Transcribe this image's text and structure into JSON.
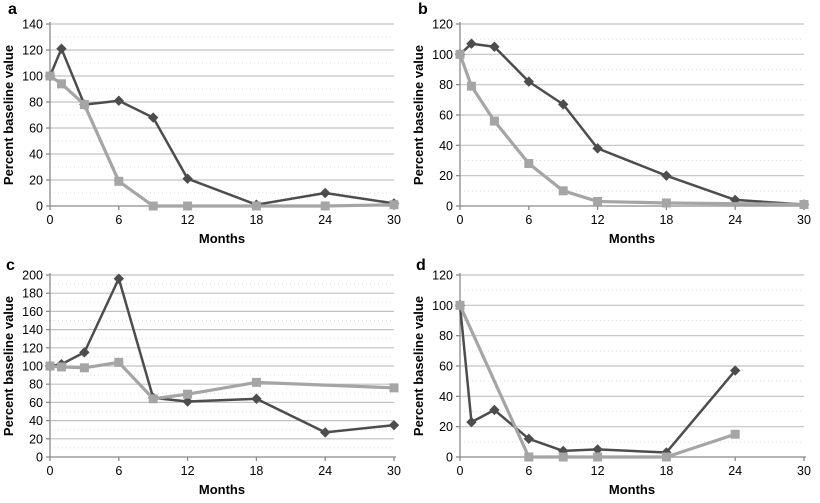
{
  "figure": {
    "background": "#ffffff",
    "series_colors": {
      "dark": "#4d4d4d",
      "light": "#a5a5a5"
    },
    "grid_major_color": "#c2c2c2",
    "grid_minor_color": "#d9d9d9",
    "axis_color": "#8a8a8a",
    "text_color": "#000000"
  },
  "chart_data": [
    {
      "panel": "a",
      "type": "line",
      "title": "",
      "xlabel": "Months",
      "ylabel": "Percent baseline value",
      "xlim": [
        0,
        30
      ],
      "ylim": [
        0,
        140
      ],
      "ytick_step": 20,
      "xticks": [
        0,
        6,
        12,
        18,
        24,
        30
      ],
      "grid": true,
      "legend": "none",
      "series": [
        {
          "name": "diamond-series",
          "marker": "diamond",
          "color_key": "dark",
          "points": [
            [
              0,
              100
            ],
            [
              1,
              121
            ],
            [
              3,
              78
            ],
            [
              6,
              81
            ],
            [
              9,
              68
            ],
            [
              12,
              21
            ],
            [
              18,
              1
            ],
            [
              24,
              10
            ],
            [
              30,
              2
            ]
          ]
        },
        {
          "name": "square-series",
          "marker": "square",
          "color_key": "light",
          "points": [
            [
              0,
              100
            ],
            [
              1,
              94
            ],
            [
              3,
              78
            ],
            [
              6,
              19
            ],
            [
              9,
              0
            ],
            [
              12,
              0
            ],
            [
              18,
              0
            ],
            [
              24,
              0
            ],
            [
              30,
              1
            ]
          ]
        }
      ]
    },
    {
      "panel": "b",
      "type": "line",
      "title": "",
      "xlabel": "Months",
      "ylabel": "Percent baseline value",
      "xlim": [
        0,
        30
      ],
      "ylim": [
        0,
        120
      ],
      "ytick_step": 20,
      "xticks": [
        0,
        6,
        12,
        18,
        24,
        30
      ],
      "grid": true,
      "legend": "none",
      "series": [
        {
          "name": "diamond-series",
          "marker": "diamond",
          "color_key": "dark",
          "points": [
            [
              0,
              100
            ],
            [
              1,
              107
            ],
            [
              3,
              105
            ],
            [
              6,
              82
            ],
            [
              9,
              67
            ],
            [
              12,
              38
            ],
            [
              18,
              20
            ],
            [
              24,
              4
            ],
            [
              30,
              1
            ]
          ]
        },
        {
          "name": "square-series",
          "marker": "square",
          "color_key": "light",
          "points": [
            [
              0,
              100
            ],
            [
              1,
              79
            ],
            [
              3,
              56
            ],
            [
              6,
              28
            ],
            [
              9,
              10
            ],
            [
              12,
              3
            ],
            [
              18,
              2
            ],
            [
              30,
              1
            ]
          ]
        }
      ]
    },
    {
      "panel": "c",
      "type": "line",
      "title": "",
      "xlabel": "Months",
      "ylabel": "Percent baseline value",
      "xlim": [
        0,
        30
      ],
      "ylim": [
        0,
        200
      ],
      "ytick_step": 20,
      "xticks": [
        0,
        6,
        12,
        18,
        24,
        30
      ],
      "grid": true,
      "legend": "none",
      "series": [
        {
          "name": "diamond-series",
          "marker": "diamond",
          "color_key": "dark",
          "points": [
            [
              0,
              100
            ],
            [
              1,
              102
            ],
            [
              3,
              115
            ],
            [
              6,
              196
            ],
            [
              9,
              65
            ],
            [
              12,
              61
            ],
            [
              18,
              64
            ],
            [
              24,
              27
            ],
            [
              30,
              35
            ]
          ]
        },
        {
          "name": "square-series",
          "marker": "square",
          "color_key": "light",
          "points": [
            [
              0,
              100
            ],
            [
              1,
              99
            ],
            [
              3,
              98
            ],
            [
              6,
              104
            ],
            [
              9,
              64
            ],
            [
              12,
              69
            ],
            [
              18,
              82
            ],
            [
              30,
              76
            ]
          ]
        }
      ]
    },
    {
      "panel": "d",
      "type": "line",
      "title": "",
      "xlabel": "Months",
      "ylabel": "Percent baseline value",
      "xlim": [
        0,
        30
      ],
      "ylim": [
        0,
        120
      ],
      "ytick_step": 20,
      "xticks": [
        0,
        6,
        12,
        18,
        24,
        30
      ],
      "grid": true,
      "legend": "none",
      "series": [
        {
          "name": "diamond-series",
          "marker": "diamond",
          "color_key": "dark",
          "points": [
            [
              0,
              100
            ],
            [
              1,
              23
            ],
            [
              3,
              31
            ],
            [
              6,
              12
            ],
            [
              9,
              4
            ],
            [
              12,
              5
            ],
            [
              18,
              3
            ],
            [
              24,
              57
            ]
          ]
        },
        {
          "name": "square-series",
          "marker": "square",
          "color_key": "light",
          "points": [
            [
              0,
              100
            ],
            [
              6,
              0
            ],
            [
              9,
              0
            ],
            [
              12,
              0
            ],
            [
              18,
              0
            ],
            [
              24,
              15
            ]
          ]
        }
      ]
    }
  ]
}
